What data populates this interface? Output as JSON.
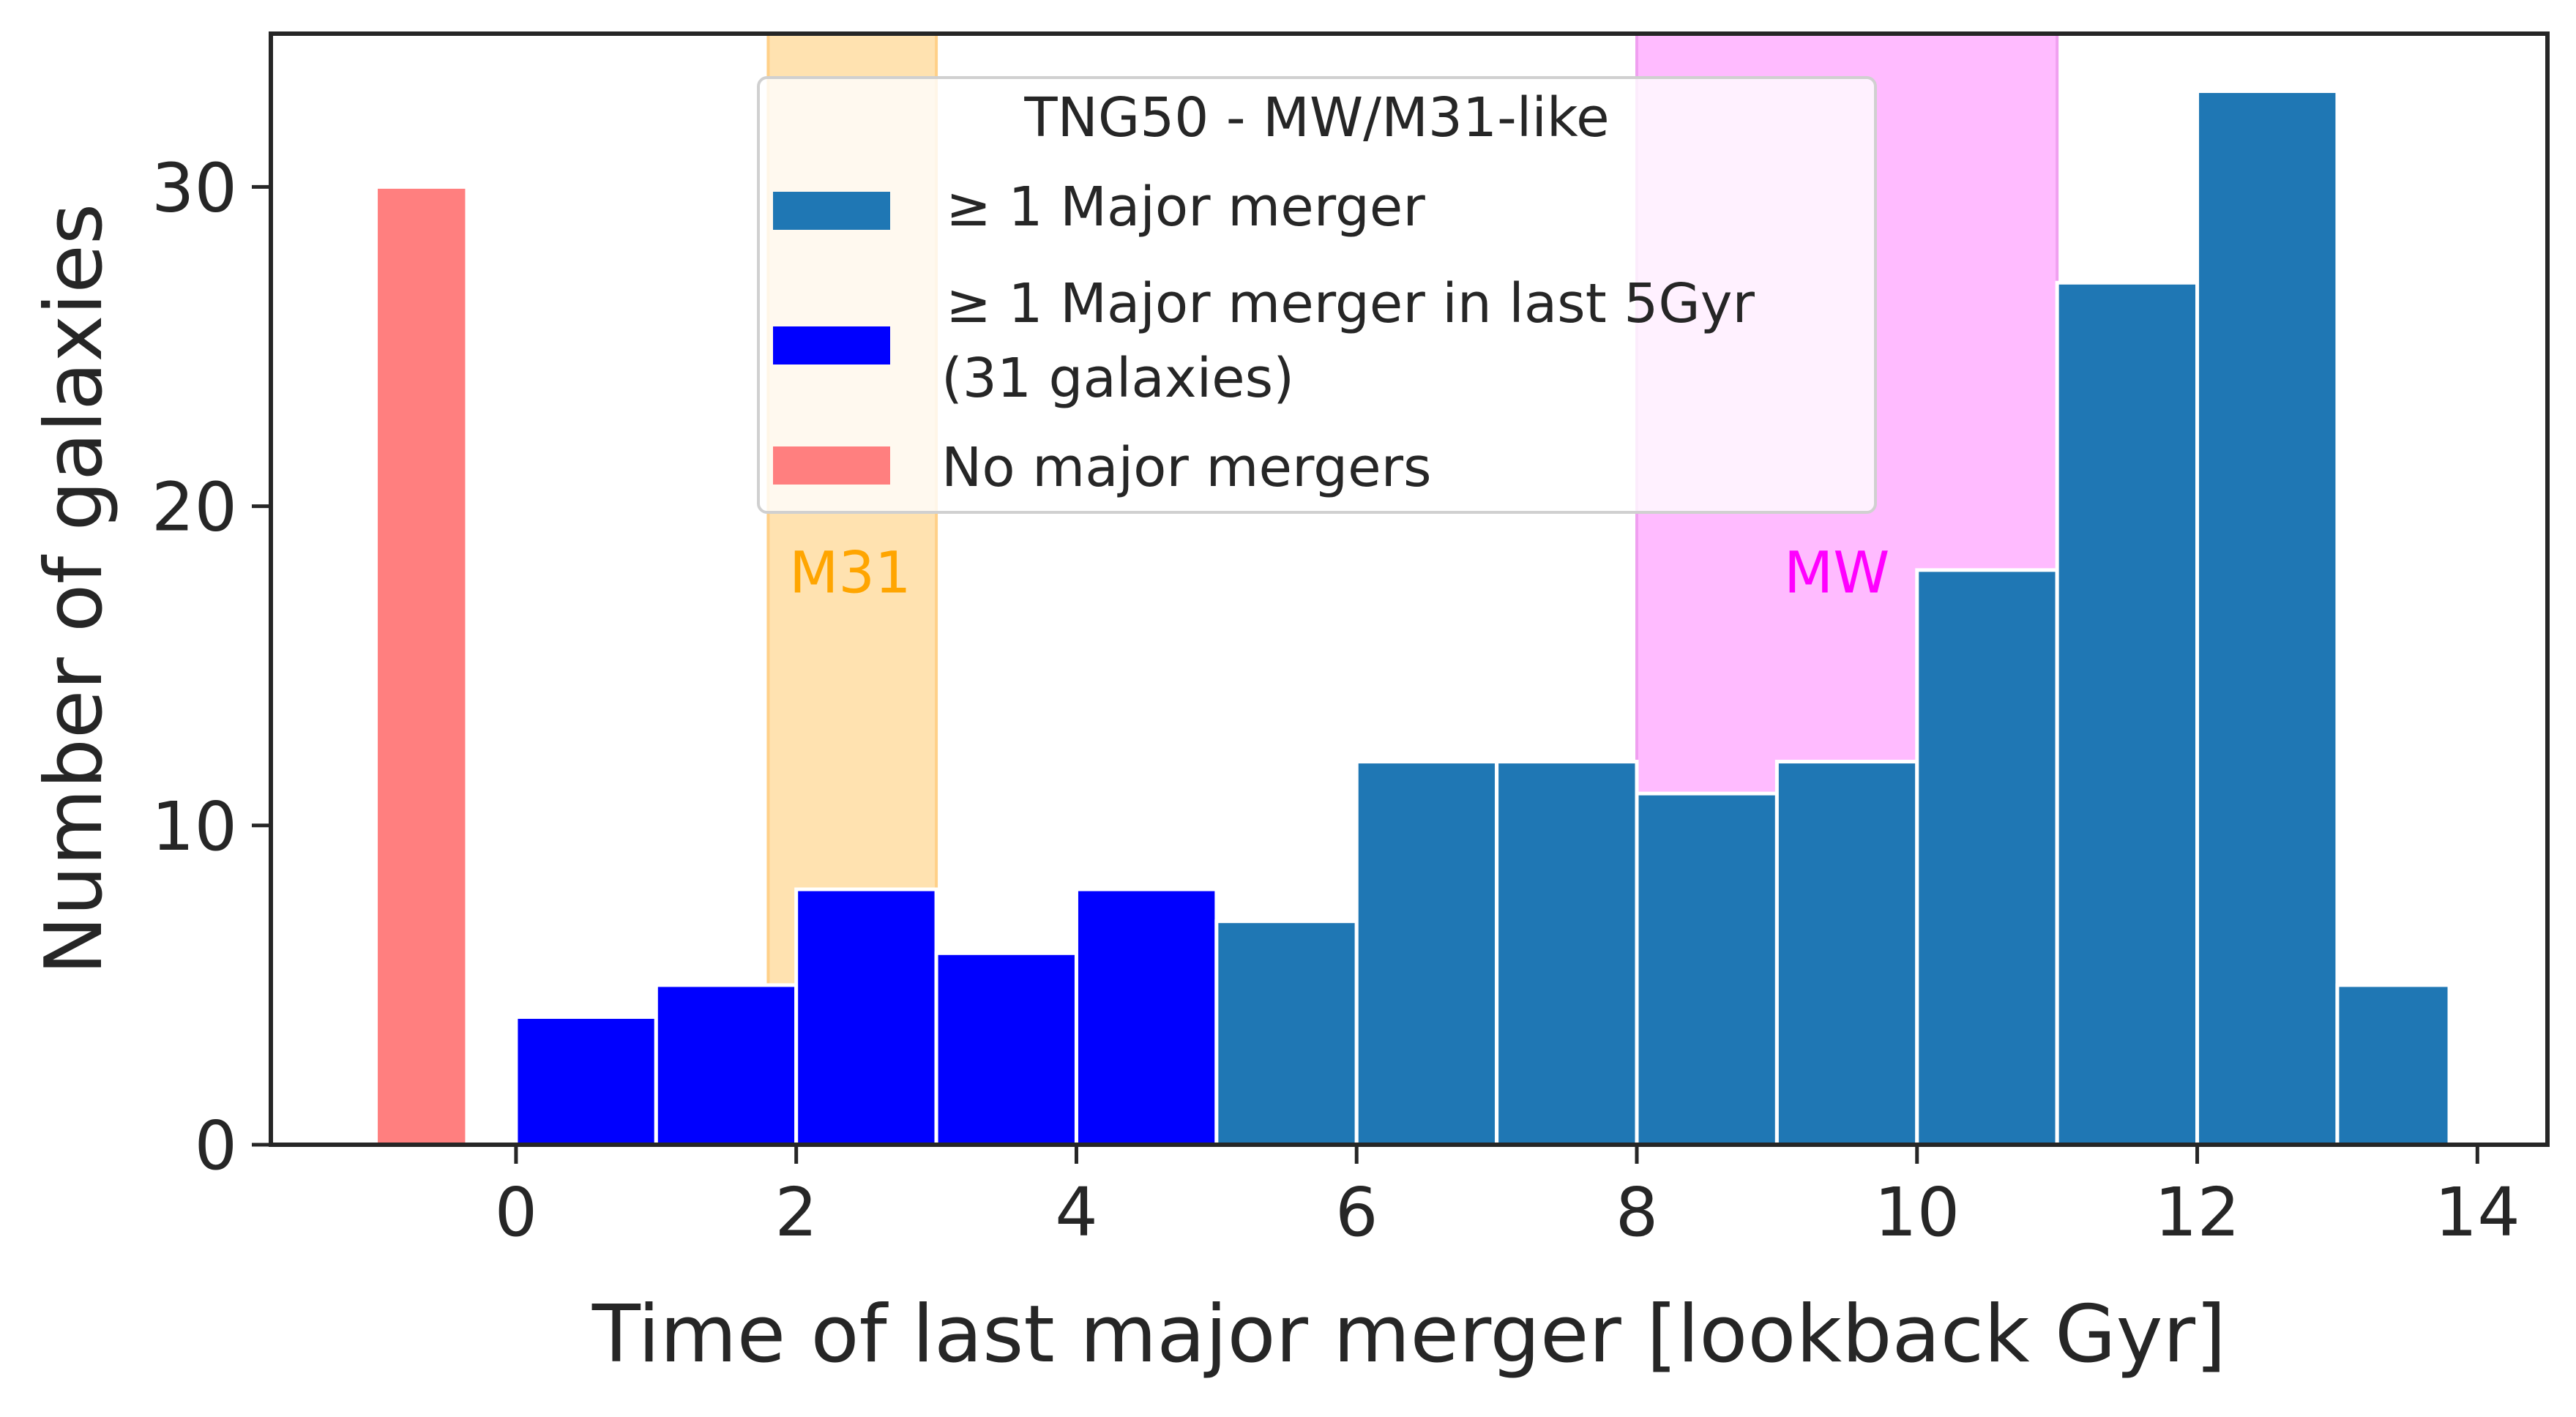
{
  "chart_data": {
    "type": "bar",
    "xlabel": "Time of last major merger [lookback Gyr]",
    "ylabel": "Number of galaxies",
    "xlim": [
      -1.75,
      14.5
    ],
    "ylim": [
      0,
      34.8
    ],
    "x_ticks": [
      "0",
      "2",
      "4",
      "6",
      "8",
      "10",
      "12",
      "14"
    ],
    "x_tick_values": [
      0,
      2,
      4,
      6,
      8,
      10,
      12,
      14
    ],
    "y_ticks": [
      "0",
      "10",
      "20",
      "30"
    ],
    "y_tick_values": [
      0,
      10,
      20,
      30
    ],
    "grid": false,
    "legend_position": "top-center",
    "legend": {
      "title": "TNG50 - MW/M31-like",
      "entries": [
        {
          "label": "≥ 1 Major merger",
          "color": "#1f77b4"
        },
        {
          "label": "≥ 1 Major merger in last 5Gyr",
          "label2": "(31 galaxies)",
          "color": "#0000ff"
        },
        {
          "label": "No major mergers",
          "color": "#ff7f7f"
        }
      ]
    },
    "bands": [
      {
        "label": "M31",
        "x0": 1.8,
        "x1": 3.0,
        "fill": "#ffe2b0",
        "edge": "#ffd088",
        "label_color": "#ffa500",
        "label_x": 1.95,
        "label_y": 17.3
      },
      {
        "label": "MW",
        "x0": 8.0,
        "x1": 11.0,
        "fill": "#ffbbff",
        "edge": "#f0a0f0",
        "label_color": "#ff00ff",
        "label_x": 9.05,
        "label_y": 17.3
      }
    ],
    "series": [
      {
        "name": "No major mergers",
        "color": "#ff7f7f",
        "bins": [
          [
            -1.0,
            -0.35
          ]
        ],
        "values": [
          30
        ]
      },
      {
        "name": "≥ 1 Major merger in last 5Gyr",
        "color": "#0000ff",
        "bins": [
          [
            0,
            1
          ],
          [
            1,
            2
          ],
          [
            2,
            3
          ],
          [
            3,
            4
          ],
          [
            4,
            5
          ]
        ],
        "values": [
          4,
          5,
          8,
          6,
          8
        ]
      },
      {
        "name": "≥ 1 Major merger",
        "color": "#1f77b4",
        "bins": [
          [
            5,
            6
          ],
          [
            6,
            7
          ],
          [
            7,
            8
          ],
          [
            8,
            9
          ],
          [
            9,
            10
          ],
          [
            10,
            11
          ],
          [
            11,
            12
          ],
          [
            12,
            13
          ],
          [
            13,
            13.8
          ]
        ],
        "values": [
          7,
          12,
          12,
          11,
          12,
          18,
          27,
          33,
          5
        ]
      }
    ]
  }
}
